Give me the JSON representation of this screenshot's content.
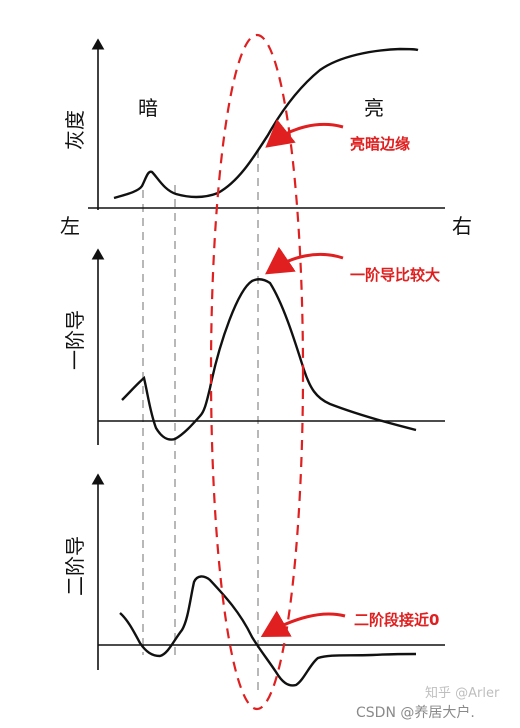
{
  "panels": {
    "gray": {
      "ylabel": "灰度",
      "dark_label": "暗",
      "bright_label": "亮"
    },
    "first": {
      "ylabel": "一阶导"
    },
    "second": {
      "ylabel": "二阶导"
    }
  },
  "x_axis": {
    "left": "左",
    "right": "右"
  },
  "annotations": {
    "edge": "亮暗边缘",
    "first_max": "一阶导比较大",
    "second_zero": "二阶段接近0"
  },
  "watermarks": {
    "zhihu": "知乎 @Arler",
    "csdn": "CSDN @养居大户."
  },
  "colors": {
    "curve": "#111111",
    "guide": "#b8b8b8",
    "highlight": "#e02020"
  }
}
